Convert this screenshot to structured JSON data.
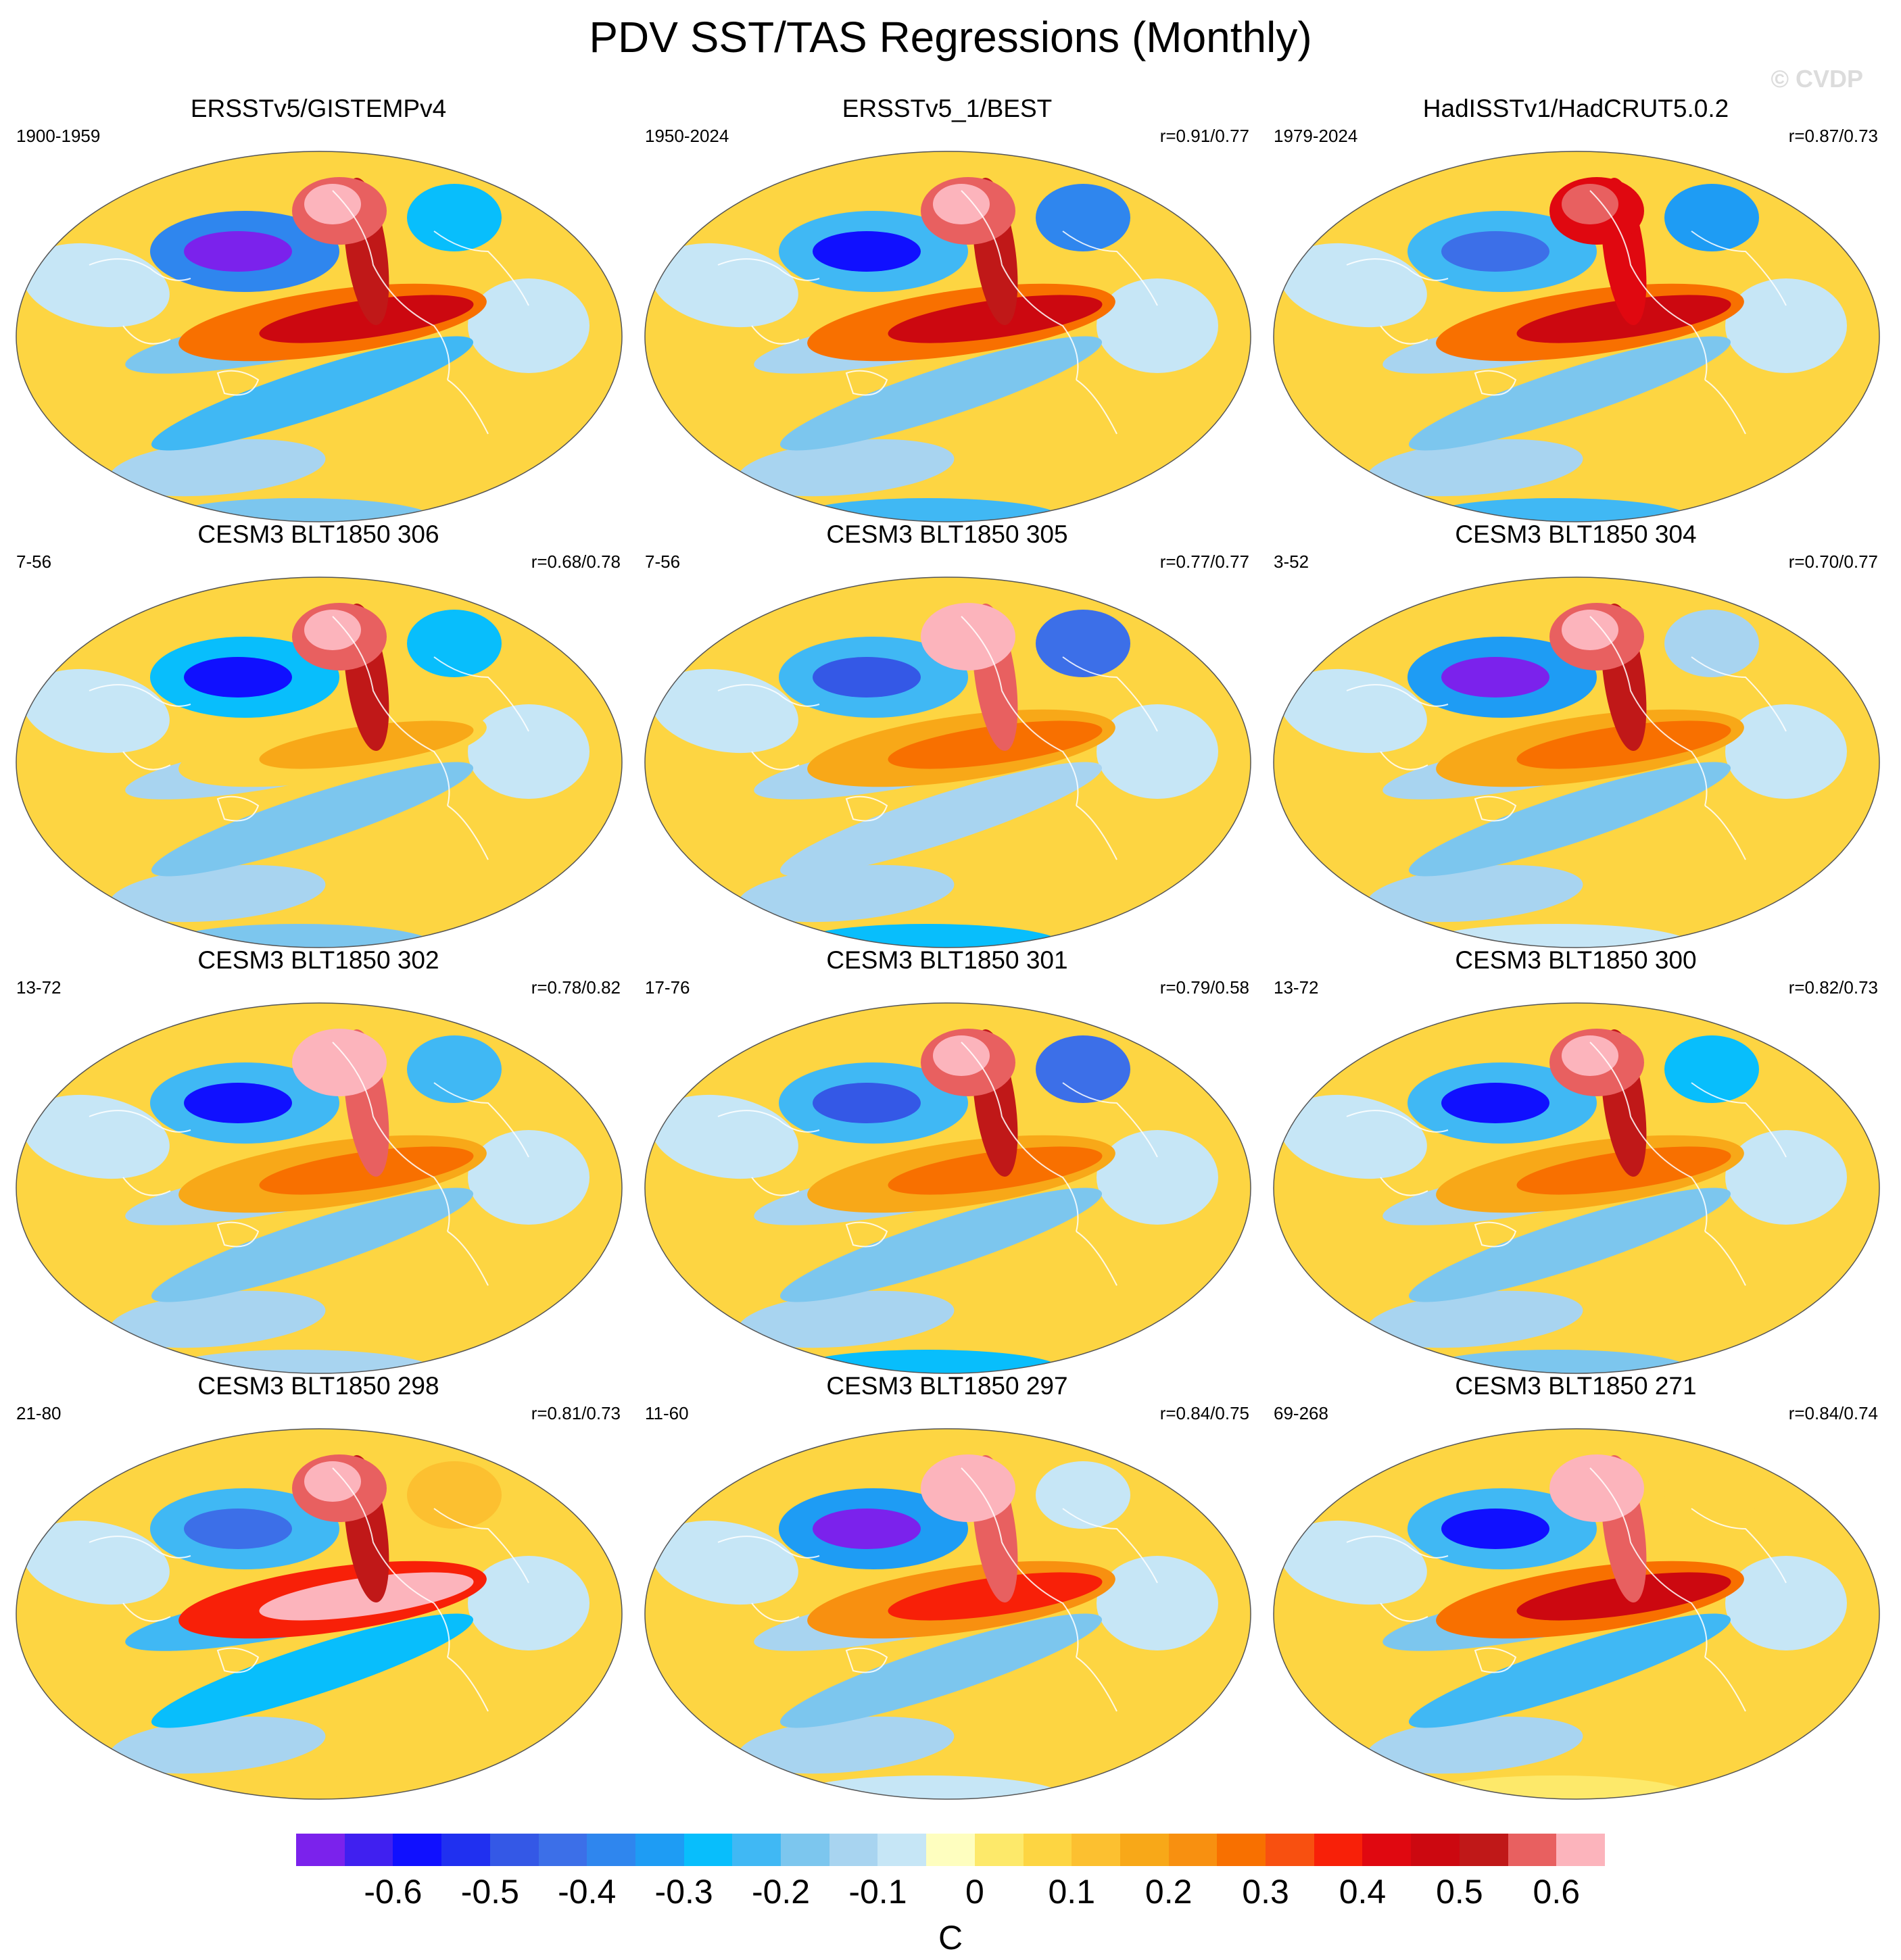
{
  "title": "PDV SST/TAS Regressions (Monthly)",
  "watermark": "© CVDP",
  "colors": [
    "#7b22ec",
    "#4020f0",
    "#1010ff",
    "#2030f0",
    "#3458e6",
    "#3c6fe8",
    "#2f86ee",
    "#1e9cf4",
    "#08befc",
    "#40b8f4",
    "#7cc6ee",
    "#a8d4f0",
    "#c6e6f6",
    "#fefebf",
    "#fde96a",
    "#fdd542",
    "#fcc030",
    "#f8a818",
    "#f89010",
    "#f87000",
    "#f85010",
    "#f82008",
    "#e00810",
    "#cc0810",
    "#c01818",
    "#e86060",
    "#fcb4bc"
  ],
  "colorbar": {
    "ticks": [
      "-0.6",
      "-0.5",
      "-0.4",
      "-0.3",
      "-0.2",
      "-0.1",
      "0",
      "0.1",
      "0.2",
      "0.3",
      "0.4",
      "0.5",
      "0.6"
    ],
    "unit": "C"
  },
  "panels": [
    {
      "title": "ERSSTv5/GISTEMPv4",
      "left": "1900-1959",
      "right": "",
      "nh": -0.8,
      "ak": 0.7,
      "trop": 0.45,
      "so": -0.25,
      "atl": -0.3
    },
    {
      "title": "ERSSTv5_1/BEST",
      "left": "1950-2024",
      "right": "r=0.91/0.77",
      "nh": -0.55,
      "ak": 0.7,
      "trop": 0.5,
      "so": -0.2,
      "atl": -0.4
    },
    {
      "title": "HadISSTv1/HadCRUT5.0.2",
      "left": "1979-2024",
      "right": "r=0.87/0.73",
      "nh": -0.45,
      "ak": 0.55,
      "trop": 0.45,
      "so": -0.2,
      "atl": -0.35
    },
    {
      "title": "CESM3 BLT1850 306",
      "left": "7-56",
      "right": "r=0.68/0.78",
      "nh": -0.6,
      "ak": 0.7,
      "trop": 0.15,
      "so": -0.2,
      "atl": -0.3
    },
    {
      "title": "CESM3 BLT1850 305",
      "left": "7-56",
      "right": "r=0.77/0.77",
      "nh": -0.5,
      "ak": 0.75,
      "trop": 0.3,
      "so": -0.15,
      "atl": -0.45
    },
    {
      "title": "CESM3 BLT1850 304",
      "left": "3-52",
      "right": "r=0.70/0.77",
      "nh": -0.75,
      "ak": 0.7,
      "trop": 0.3,
      "so": -0.2,
      "atl": -0.15
    },
    {
      "title": "CESM3 BLT1850 302",
      "left": "13-72",
      "right": "r=0.78/0.82",
      "nh": -0.55,
      "ak": 0.75,
      "trop": 0.25,
      "so": -0.2,
      "atl": -0.25
    },
    {
      "title": "CESM3 BLT1850 301",
      "left": "17-76",
      "right": "r=0.79/0.58",
      "nh": -0.5,
      "ak": 0.7,
      "trop": 0.3,
      "so": -0.2,
      "atl": -0.45
    },
    {
      "title": "CESM3 BLT1850 300",
      "left": "13-72",
      "right": "r=0.82/0.73",
      "nh": -0.55,
      "ak": 0.7,
      "trop": 0.25,
      "so": -0.2,
      "atl": -0.3
    },
    {
      "title": "CESM3 BLT1850 298",
      "left": "21-80",
      "right": "r=0.81/0.73",
      "nh": -0.45,
      "ak": 0.7,
      "trop": 0.65,
      "so": -0.3,
      "atl": 0.1
    },
    {
      "title": "CESM3 BLT1850 297",
      "left": "11-60",
      "right": "r=0.84/0.75",
      "nh": -0.7,
      "ak": 0.75,
      "trop": 0.35,
      "so": -0.2,
      "atl": -0.1
    },
    {
      "title": "CESM3 BLT1850 271",
      "left": "69-268",
      "right": "r=0.84/0.74",
      "nh": -0.55,
      "ak": 0.75,
      "trop": 0.45,
      "so": -0.25,
      "atl": 0.05
    }
  ]
}
